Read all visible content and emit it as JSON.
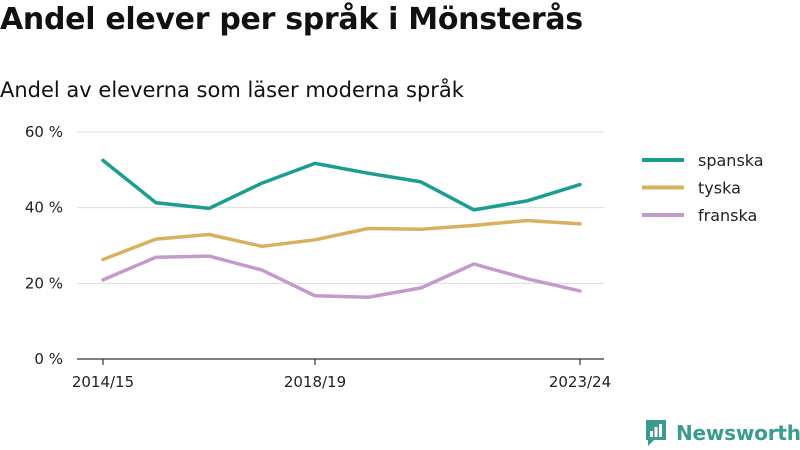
{
  "header": {
    "title": "Andel elever per språk i Mönsterås",
    "subtitle": "Andel av eleverna som läser moderna språk"
  },
  "brand": {
    "name": "Newsworthy",
    "icon": "newsworthy-logo-icon",
    "color": "#3a9b8f"
  },
  "chart_data": {
    "type": "line",
    "x": [
      "2014/15",
      "2015/16",
      "2016/17",
      "2017/18",
      "2018/19",
      "2019/20",
      "2020/21",
      "2021/22",
      "2022/23",
      "2023/24"
    ],
    "x_tick_labels": [
      "2014/15",
      "2018/19",
      "2023/24"
    ],
    "y_ticks": [
      0,
      20,
      40,
      60
    ],
    "y_tick_labels": [
      "0 %",
      "20 %",
      "40 %",
      "60 %"
    ],
    "ylim": [
      0,
      60
    ],
    "grid": true,
    "legend_position": "right",
    "series": [
      {
        "name": "spanska",
        "color": "#1a9e8f",
        "values": [
          52.5,
          41.3,
          39.8,
          46.5,
          51.7,
          49.1,
          46.8,
          39.4,
          41.8,
          46.1
        ]
      },
      {
        "name": "tyska",
        "color": "#d6b15e",
        "values": [
          26.3,
          31.7,
          32.9,
          29.8,
          31.5,
          34.5,
          34.3,
          35.3,
          36.6,
          35.7
        ]
      },
      {
        "name": "franska",
        "color": "#c39bcb",
        "values": [
          20.9,
          26.9,
          27.2,
          23.5,
          16.7,
          16.3,
          18.8,
          25.1,
          21.2,
          18.0
        ]
      }
    ]
  }
}
